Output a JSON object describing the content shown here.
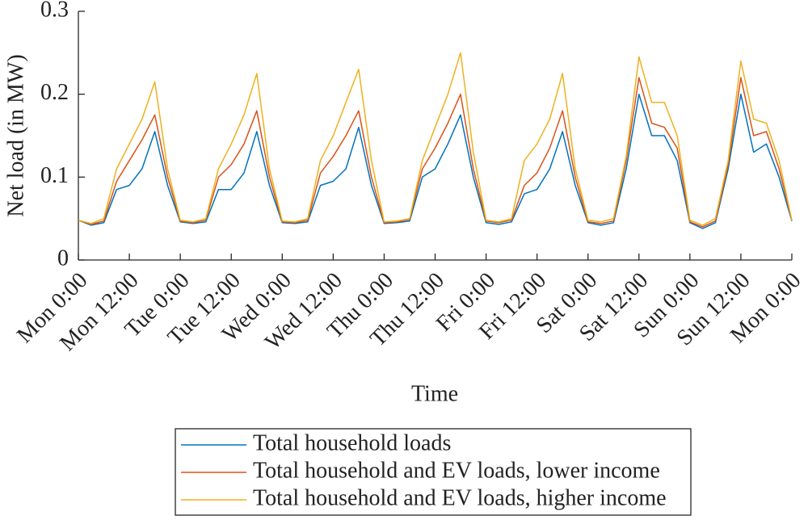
{
  "chart_data": {
    "type": "line",
    "x_label": "Time",
    "y_label": "Net load (in MW)",
    "x": [
      0,
      3,
      6,
      9,
      12,
      15,
      18,
      21,
      24,
      27,
      30,
      33,
      36,
      39,
      42,
      45,
      48,
      51,
      54,
      57,
      60,
      63,
      66,
      69,
      72,
      75,
      78,
      81,
      84,
      87,
      90,
      93,
      96,
      99,
      102,
      105,
      108,
      111,
      114,
      117,
      120,
      123,
      126,
      129,
      132,
      135,
      138,
      141,
      144,
      147,
      150,
      153,
      156,
      159,
      162,
      165,
      168
    ],
    "xlim": [
      0,
      168
    ],
    "xticks": [
      {
        "value": 0,
        "label": "Mon 0:00"
      },
      {
        "value": 12,
        "label": "Mon 12:00"
      },
      {
        "value": 24,
        "label": "Tue 0:00"
      },
      {
        "value": 36,
        "label": "Tue 12:00"
      },
      {
        "value": 48,
        "label": "Wed 0:00"
      },
      {
        "value": 60,
        "label": "Wed 12:00"
      },
      {
        "value": 72,
        "label": "Thu 0:00"
      },
      {
        "value": 84,
        "label": "Thu 12:00"
      },
      {
        "value": 96,
        "label": "Fri 0:00"
      },
      {
        "value": 108,
        "label": "Fri 12:00"
      },
      {
        "value": 120,
        "label": "Sat 0:00"
      },
      {
        "value": 132,
        "label": "Sat 12:00"
      },
      {
        "value": 144,
        "label": "Sun 0:00"
      },
      {
        "value": 156,
        "label": "Sun 12:00"
      },
      {
        "value": 168,
        "label": "Mon 0:00"
      }
    ],
    "ylim": [
      0,
      0.3
    ],
    "yticks": [
      0,
      0.1,
      0.2,
      0.3
    ],
    "grid": false,
    "legend": "bottom",
    "series": [
      {
        "name": "Total household loads",
        "color": "#0072BD",
        "values": [
          0.048,
          0.042,
          0.045,
          0.085,
          0.09,
          0.11,
          0.155,
          0.09,
          0.046,
          0.044,
          0.046,
          0.085,
          0.085,
          0.105,
          0.155,
          0.09,
          0.045,
          0.044,
          0.046,
          0.09,
          0.095,
          0.11,
          0.16,
          0.09,
          0.044,
          0.045,
          0.047,
          0.1,
          0.11,
          0.14,
          0.175,
          0.1,
          0.045,
          0.043,
          0.046,
          0.08,
          0.085,
          0.11,
          0.155,
          0.09,
          0.045,
          0.042,
          0.045,
          0.11,
          0.2,
          0.15,
          0.15,
          0.12,
          0.045,
          0.038,
          0.045,
          0.11,
          0.2,
          0.13,
          0.14,
          0.1,
          0.047
        ]
      },
      {
        "name": "Total household and EV loads, lower income",
        "color": "#D95319",
        "values": [
          0.048,
          0.043,
          0.047,
          0.095,
          0.12,
          0.145,
          0.175,
          0.1,
          0.047,
          0.045,
          0.048,
          0.1,
          0.115,
          0.14,
          0.18,
          0.1,
          0.046,
          0.045,
          0.048,
          0.105,
          0.125,
          0.15,
          0.18,
          0.1,
          0.045,
          0.046,
          0.049,
          0.11,
          0.135,
          0.165,
          0.2,
          0.11,
          0.047,
          0.045,
          0.048,
          0.09,
          0.105,
          0.135,
          0.18,
          0.1,
          0.046,
          0.044,
          0.047,
          0.12,
          0.22,
          0.165,
          0.16,
          0.135,
          0.046,
          0.04,
          0.047,
          0.115,
          0.22,
          0.15,
          0.155,
          0.11,
          0.048
        ]
      },
      {
        "name": "Total household and EV loads, higher income",
        "color": "#EDB120",
        "values": [
          0.048,
          0.044,
          0.05,
          0.11,
          0.14,
          0.17,
          0.215,
          0.11,
          0.048,
          0.046,
          0.05,
          0.11,
          0.14,
          0.175,
          0.225,
          0.11,
          0.047,
          0.046,
          0.05,
          0.12,
          0.15,
          0.19,
          0.23,
          0.12,
          0.046,
          0.047,
          0.05,
          0.12,
          0.16,
          0.2,
          0.25,
          0.13,
          0.048,
          0.046,
          0.05,
          0.12,
          0.14,
          0.17,
          0.225,
          0.11,
          0.048,
          0.046,
          0.05,
          0.125,
          0.245,
          0.19,
          0.19,
          0.15,
          0.048,
          0.042,
          0.05,
          0.12,
          0.24,
          0.17,
          0.165,
          0.12,
          0.048
        ]
      }
    ]
  }
}
